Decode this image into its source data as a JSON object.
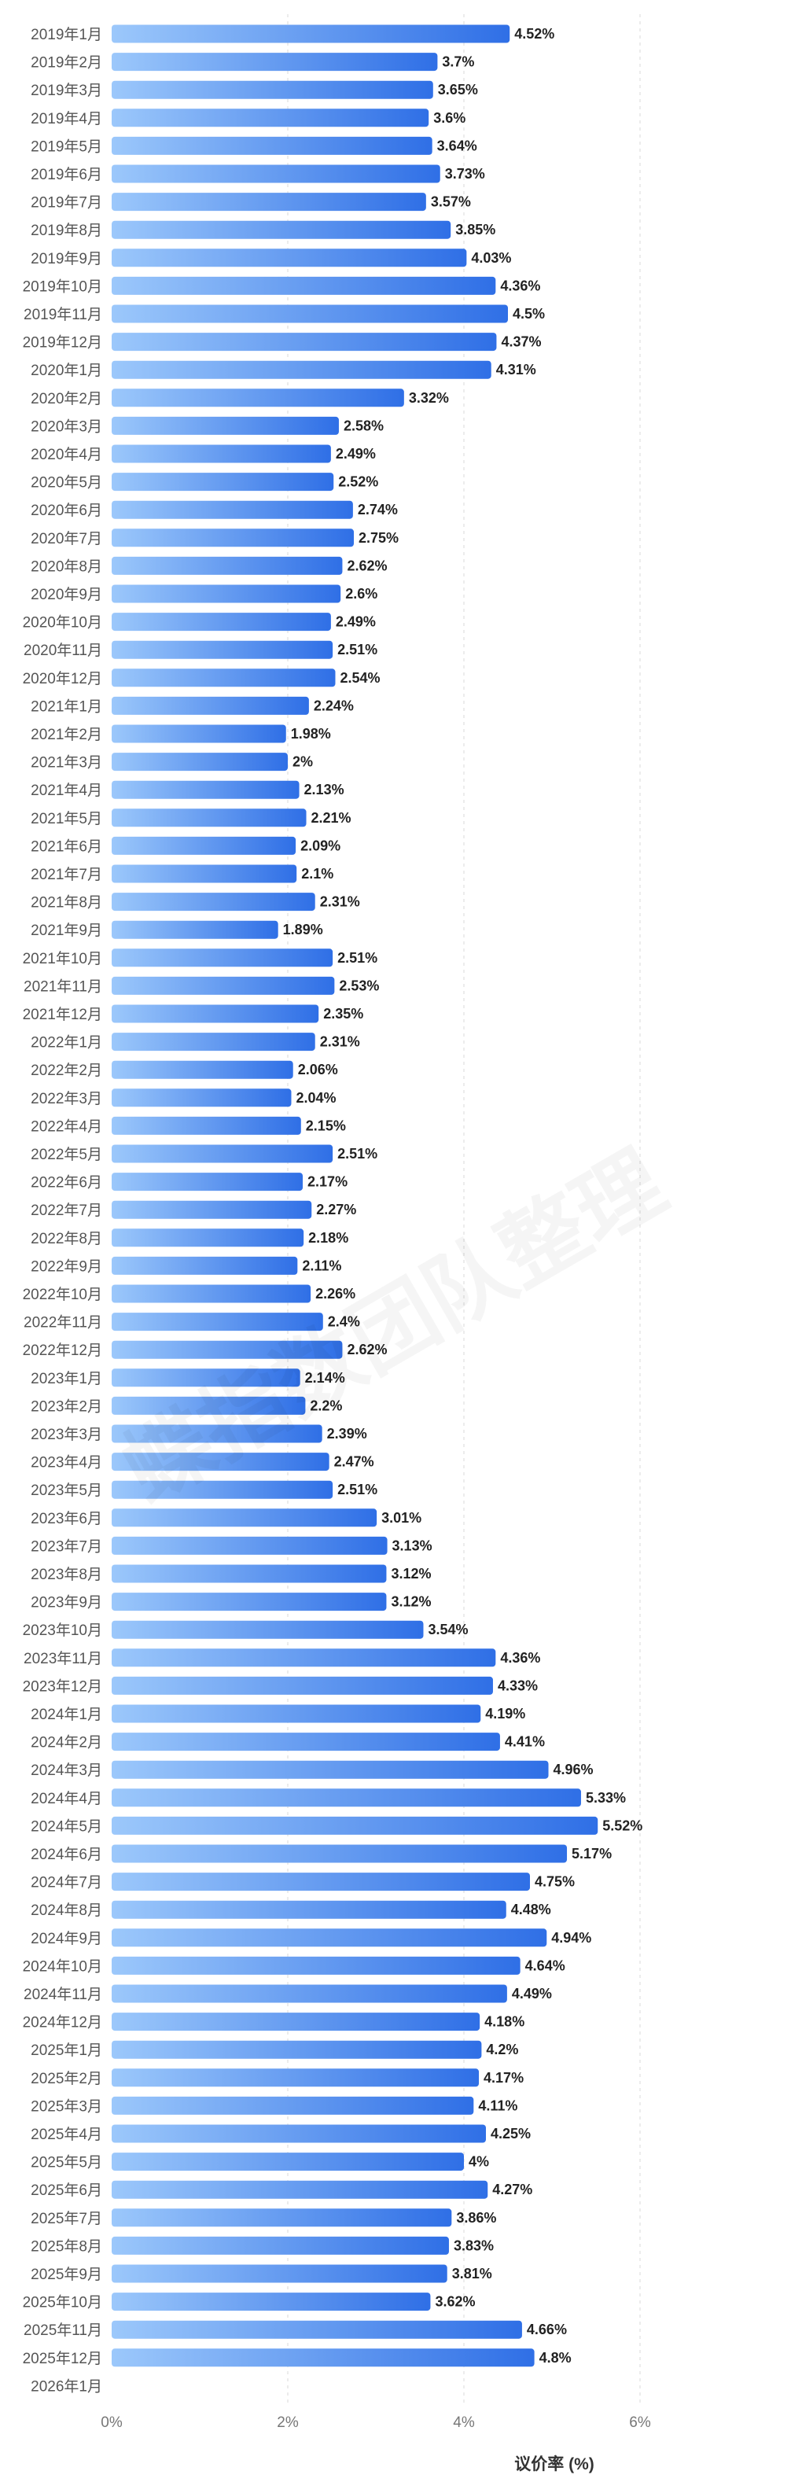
{
  "chart_data": {
    "type": "bar",
    "orientation": "horizontal",
    "xlabel": "议价率 (%)",
    "xlim": [
      0,
      8
    ],
    "xticks": [
      "0%",
      "2%",
      "4%",
      "6%"
    ],
    "grid": true,
    "categories": [
      "2019年1月",
      "2019年2月",
      "2019年3月",
      "2019年4月",
      "2019年5月",
      "2019年6月",
      "2019年7月",
      "2019年8月",
      "2019年9月",
      "2019年10月",
      "2019年11月",
      "2019年12月",
      "2020年1月",
      "2020年2月",
      "2020年3月",
      "2020年4月",
      "2020年5月",
      "2020年6月",
      "2020年7月",
      "2020年8月",
      "2020年9月",
      "2020年10月",
      "2020年11月",
      "2020年12月",
      "2021年1月",
      "2021年2月",
      "2021年3月",
      "2021年4月",
      "2021年5月",
      "2021年6月",
      "2021年7月",
      "2021年8月",
      "2021年9月",
      "2021年10月",
      "2021年11月",
      "2021年12月",
      "2022年1月",
      "2022年2月",
      "2022年3月",
      "2022年4月",
      "2022年5月",
      "2022年6月",
      "2022年7月",
      "2022年8月",
      "2022年9月",
      "2022年10月",
      "2022年11月",
      "2022年12月",
      "2023年1月",
      "2023年2月",
      "2023年3月",
      "2023年4月",
      "2023年5月",
      "2023年6月",
      "2023年7月",
      "2023年8月",
      "2023年9月",
      "2023年10月",
      "2023年11月",
      "2023年12月",
      "2024年1月",
      "2024年2月",
      "2024年3月",
      "2024年4月",
      "2024年5月",
      "2024年6月",
      "2024年7月",
      "2024年8月",
      "2024年9月",
      "2024年10月",
      "2024年11月",
      "2024年12月",
      "2025年1月",
      "2025年2月",
      "2025年3月",
      "2025年4月",
      "2025年5月",
      "2025年6月",
      "2025年7月",
      "2025年8月",
      "2025年9月",
      "2025年10月",
      "2025年11月",
      "2025年12月",
      "2026年1月"
    ],
    "values": [
      4.52,
      3.7,
      3.65,
      3.6,
      3.64,
      3.73,
      3.57,
      3.85,
      4.03,
      4.36,
      4.5,
      4.37,
      4.31,
      3.32,
      2.58,
      2.49,
      2.52,
      2.74,
      2.75,
      2.62,
      2.6,
      2.49,
      2.51,
      2.54,
      2.24,
      1.98,
      2,
      2.13,
      2.21,
      2.09,
      2.1,
      2.31,
      1.89,
      2.51,
      2.53,
      2.35,
      2.31,
      2.06,
      2.04,
      2.15,
      2.51,
      2.17,
      2.27,
      2.18,
      2.11,
      2.26,
      2.4,
      2.62,
      2.14,
      2.2,
      2.39,
      2.47,
      2.51,
      3.01,
      3.13,
      3.12,
      3.12,
      3.54,
      4.36,
      4.33,
      4.19,
      4.41,
      4.96,
      5.33,
      5.52,
      5.17,
      4.75,
      4.48,
      4.94,
      4.64,
      4.49,
      4.18,
      4.2,
      4.17,
      4.11,
      4.25,
      4,
      4.27,
      3.86,
      3.83,
      3.81,
      3.62,
      4.66,
      4.8,
      null
    ],
    "value_labels": [
      "4.52%",
      "3.7%",
      "3.65%",
      "3.6%",
      "3.64%",
      "3.73%",
      "3.57%",
      "3.85%",
      "4.03%",
      "4.36%",
      "4.5%",
      "4.37%",
      "4.31%",
      "3.32%",
      "2.58%",
      "2.49%",
      "2.52%",
      "2.74%",
      "2.75%",
      "2.62%",
      "2.6%",
      "2.49%",
      "2.51%",
      "2.54%",
      "2.24%",
      "1.98%",
      "2%",
      "2.13%",
      "2.21%",
      "2.09%",
      "2.1%",
      "2.31%",
      "1.89%",
      "2.51%",
      "2.53%",
      "2.35%",
      "2.31%",
      "2.06%",
      "2.04%",
      "2.15%",
      "2.51%",
      "2.17%",
      "2.27%",
      "2.18%",
      "2.11%",
      "2.26%",
      "2.4%",
      "2.62%",
      "2.14%",
      "2.2%",
      "2.39%",
      "2.47%",
      "2.51%",
      "3.01%",
      "3.13%",
      "3.12%",
      "3.12%",
      "3.54%",
      "4.36%",
      "4.33%",
      "4.19%",
      "4.41%",
      "4.96%",
      "5.33%",
      "5.52%",
      "5.17%",
      "4.75%",
      "4.48%",
      "4.94%",
      "4.64%",
      "4.49%",
      "4.18%",
      "4.2%",
      "4.17%",
      "4.11%",
      "4.25%",
      "4%",
      "4.27%",
      "3.86%",
      "3.83%",
      "3.81%",
      "3.62%",
      "4.66%",
      "4.8%",
      ""
    ],
    "colors": {
      "bar_start": "#9cc8fb",
      "bar_end": "#2f6fe6",
      "grid": "#d9d9d9"
    }
  },
  "watermark": "蝶指数团队整理"
}
